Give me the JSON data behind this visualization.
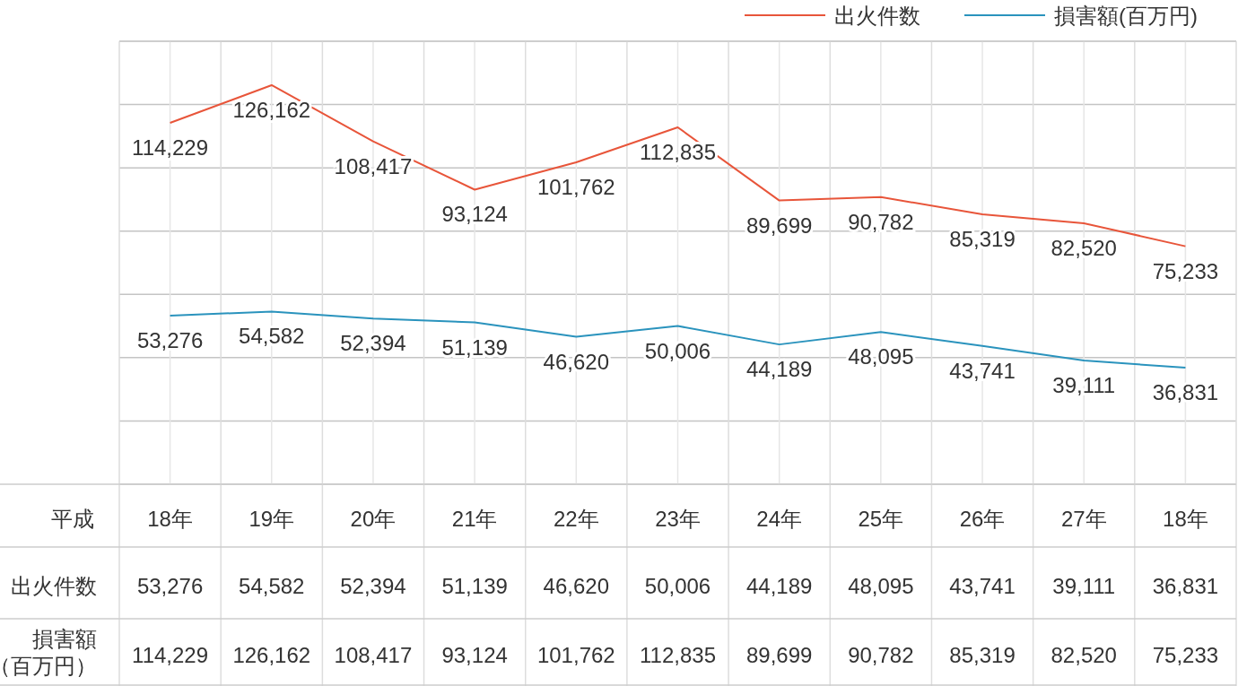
{
  "chart_data": {
    "type": "line",
    "categories": [
      "18年",
      "19年",
      "20年",
      "21年",
      "22年",
      "23年",
      "24年",
      "25年",
      "26年",
      "27年",
      "18年"
    ],
    "series": [
      {
        "name": "出火件数",
        "color": "#e8553a",
        "values": [
          114229,
          126162,
          108417,
          93124,
          101762,
          112835,
          89699,
          90782,
          85319,
          82520,
          75233
        ],
        "value_labels": [
          "114,229",
          "126,162",
          "108,417",
          "93,124",
          "101,762",
          "112,835",
          "89,699",
          "90,782",
          "85,319",
          "82,520",
          "75,233"
        ]
      },
      {
        "name": "損害額(百万円)",
        "color": "#2a93bd",
        "values": [
          53276,
          54582,
          52394,
          51139,
          46620,
          50006,
          44189,
          48095,
          43741,
          39111,
          36831
        ],
        "value_labels": [
          "53,276",
          "54,582",
          "52,394",
          "51,139",
          "46,620",
          "50,006",
          "44,189",
          "48,095",
          "43,741",
          "39,111",
          "36,831"
        ]
      }
    ],
    "grid": true,
    "legend": "top right",
    "marker": "none",
    "line_style": "solid",
    "annotations": [
      "平成",
      "出火件数",
      "損害額（百万円）",
      "53,276",
      "54,582",
      "52,394",
      "51,139",
      "46,620",
      "50,006",
      "44,189",
      "48,095",
      "43,741",
      "39,111",
      "36,831",
      "114,229",
      "126,162",
      "108,417",
      "93,124",
      "101,762",
      "112,835",
      "89,699",
      "90,782",
      "85,319",
      "82,520",
      "75,233"
    ]
  }
}
